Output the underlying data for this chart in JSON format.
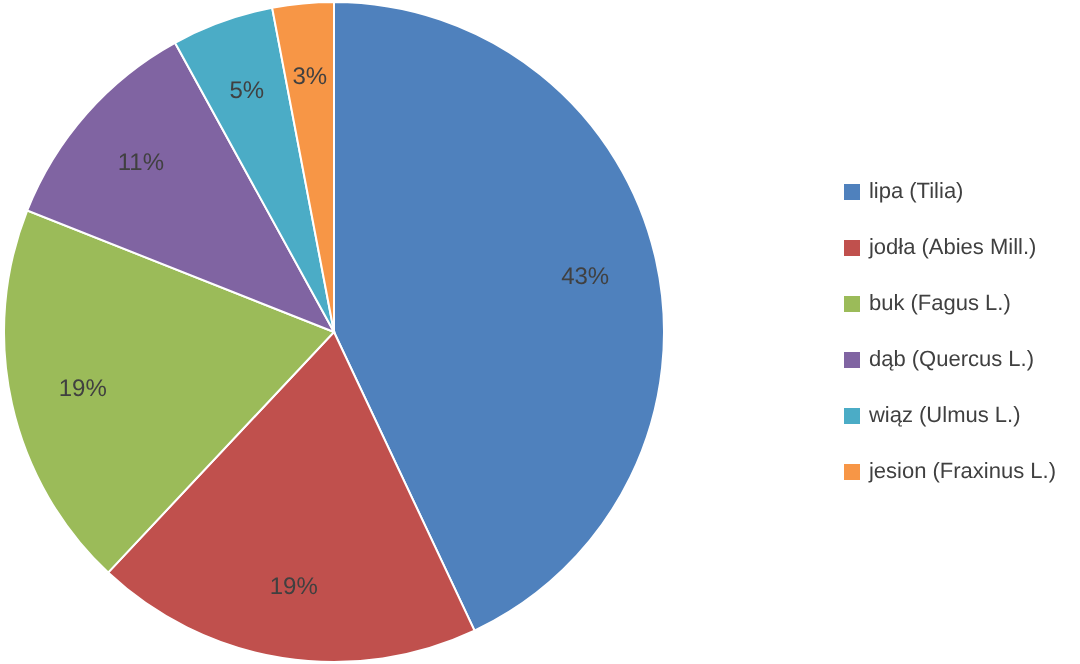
{
  "chart_data": {
    "type": "pie",
    "categories": [
      "lipa (Tilia)",
      "jodła (Abies Mill.)",
      "buk (Fagus L.)",
      "dąb (Quercus L.)",
      "wiąz (Ulmus L.)",
      "jesion (Fraxinus L.)"
    ],
    "values": [
      43,
      19,
      19,
      11,
      5,
      3
    ],
    "value_labels": [
      "43%",
      "19%",
      "19%",
      "11%",
      "5%",
      "3%"
    ],
    "colors": [
      "#4f81bd",
      "#c0504d",
      "#9bbb59",
      "#8064a2",
      "#4bacc6",
      "#f79646"
    ],
    "legend": "right"
  }
}
